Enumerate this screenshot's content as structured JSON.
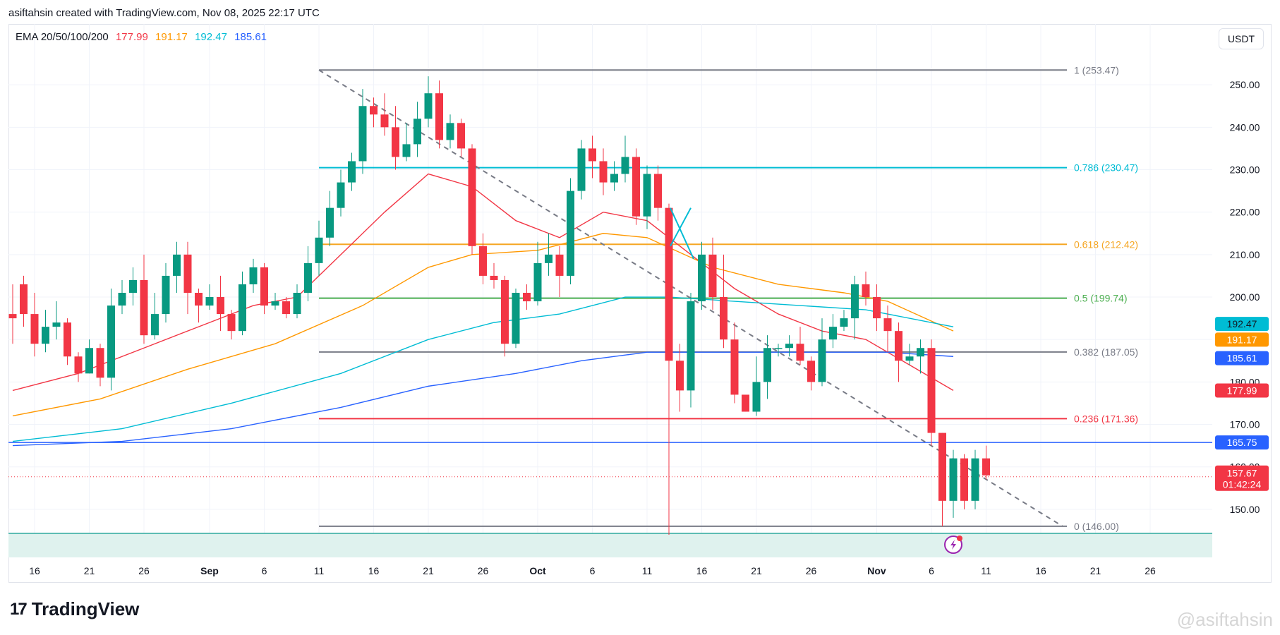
{
  "header": {
    "attribution": "asiftahsin created with TradingView.com, Nov 08, 2025 22:17 UTC"
  },
  "legend": {
    "label": "EMA 20/50/100/200",
    "values": [
      {
        "value": "177.99",
        "color": "#f23645"
      },
      {
        "value": "191.17",
        "color": "#ff9800"
      },
      {
        "value": "192.47",
        "color": "#00bcd4"
      },
      {
        "value": "185.61",
        "color": "#2962ff"
      }
    ]
  },
  "currency": "USDT",
  "brand": {
    "name": "TradingView",
    "mark": "17"
  },
  "watermark": "@asiftahsin",
  "chart_data": {
    "type": "candlestick",
    "title": "EMA 20/50/100/200",
    "ylim": [
      142,
      260
    ],
    "y_ticks": [
      150,
      160,
      170,
      180,
      190,
      200,
      210,
      220,
      230,
      240,
      250
    ],
    "x_labels": [
      {
        "i": 2,
        "label": "16"
      },
      {
        "i": 7,
        "label": "21"
      },
      {
        "i": 12,
        "label": "26"
      },
      {
        "i": 18,
        "label": "Sep"
      },
      {
        "i": 23,
        "label": "6"
      },
      {
        "i": 28,
        "label": "11"
      },
      {
        "i": 33,
        "label": "16"
      },
      {
        "i": 38,
        "label": "21"
      },
      {
        "i": 43,
        "label": "26"
      },
      {
        "i": 48,
        "label": "Oct"
      },
      {
        "i": 53,
        "label": "6"
      },
      {
        "i": 58,
        "label": "11"
      },
      {
        "i": 63,
        "label": "16"
      },
      {
        "i": 68,
        "label": "21"
      },
      {
        "i": 73,
        "label": "26"
      },
      {
        "i": 79,
        "label": "Nov"
      },
      {
        "i": 84,
        "label": "6"
      },
      {
        "i": 89,
        "label": "11"
      },
      {
        "i": 94,
        "label": "16"
      },
      {
        "i": 99,
        "label": "21"
      },
      {
        "i": 104,
        "label": "26"
      }
    ],
    "candles": [
      [
        196,
        195,
        203,
        189
      ],
      [
        203,
        196,
        205,
        193
      ],
      [
        196,
        189,
        201,
        186
      ],
      [
        189,
        193,
        197,
        187
      ],
      [
        193,
        194,
        199,
        190
      ],
      [
        194,
        186,
        195,
        184
      ],
      [
        186,
        182,
        187,
        180
      ],
      [
        182,
        188,
        190,
        182
      ],
      [
        188,
        181,
        189,
        179
      ],
      [
        181,
        198,
        202,
        178
      ],
      [
        198,
        201,
        204,
        196
      ],
      [
        201,
        204,
        207,
        198
      ],
      [
        204,
        191,
        210,
        189
      ],
      [
        191,
        196,
        201,
        190
      ],
      [
        196,
        205,
        208,
        194
      ],
      [
        205,
        210,
        213,
        201
      ],
      [
        210,
        201,
        213,
        196
      ],
      [
        201,
        198,
        202,
        194
      ],
      [
        198,
        200,
        203,
        197
      ],
      [
        200,
        196,
        205,
        192
      ],
      [
        196,
        192,
        197,
        190
      ],
      [
        192,
        203,
        206,
        191
      ],
      [
        203,
        207,
        209,
        201
      ],
      [
        207,
        198,
        208,
        196
      ],
      [
        198,
        199,
        201,
        197
      ],
      [
        199,
        196,
        200,
        195
      ],
      [
        196,
        201,
        203,
        195
      ],
      [
        201,
        208,
        212,
        199
      ],
      [
        208,
        214,
        218,
        205
      ],
      [
        214,
        221,
        225,
        212
      ],
      [
        221,
        227,
        230,
        219
      ],
      [
        227,
        232,
        234,
        225
      ],
      [
        232,
        245,
        249,
        229
      ],
      [
        245,
        243,
        247,
        240
      ],
      [
        243,
        240,
        248,
        238
      ],
      [
        240,
        233,
        245,
        230
      ],
      [
        233,
        236,
        241,
        232
      ],
      [
        236,
        242,
        246,
        233
      ],
      [
        242,
        248,
        252,
        240
      ],
      [
        248,
        237,
        251,
        235
      ],
      [
        237,
        241,
        243,
        235
      ],
      [
        241,
        235,
        242,
        233
      ],
      [
        235,
        212,
        236,
        210
      ],
      [
        212,
        205,
        215,
        203
      ],
      [
        205,
        204,
        208,
        202
      ],
      [
        204,
        189,
        205,
        186
      ],
      [
        189,
        201,
        202,
        188
      ],
      [
        201,
        199,
        203,
        197
      ],
      [
        199,
        208,
        213,
        198
      ],
      [
        208,
        210,
        215,
        205
      ],
      [
        210,
        205,
        212,
        200
      ],
      [
        205,
        225,
        228,
        203
      ],
      [
        225,
        235,
        237,
        223
      ],
      [
        235,
        232,
        238,
        228
      ],
      [
        232,
        227,
        235,
        224
      ],
      [
        227,
        229,
        232,
        225
      ],
      [
        229,
        233,
        238,
        227
      ],
      [
        233,
        219,
        235,
        217
      ],
      [
        219,
        229,
        231,
        216
      ],
      [
        229,
        221,
        231,
        218
      ],
      [
        221,
        185,
        222,
        144
      ],
      [
        185,
        178,
        189,
        173
      ],
      [
        178,
        199,
        201,
        174
      ],
      [
        199,
        210,
        213,
        197
      ],
      [
        210,
        200,
        214,
        197
      ],
      [
        200,
        190,
        210,
        188
      ],
      [
        190,
        177,
        194,
        175
      ],
      [
        177,
        173,
        176,
        173
      ],
      [
        173,
        180,
        186,
        172
      ],
      [
        180,
        188,
        191,
        176
      ],
      [
        188,
        188,
        189,
        186
      ],
      [
        188,
        189,
        191,
        186
      ],
      [
        189,
        185,
        193,
        184
      ],
      [
        185,
        180,
        186,
        178
      ],
      [
        180,
        190,
        195,
        179
      ],
      [
        190,
        193,
        196,
        188
      ],
      [
        193,
        195,
        197,
        192
      ],
      [
        195,
        203,
        205,
        190
      ],
      [
        203,
        200,
        206,
        198
      ],
      [
        200,
        195,
        203,
        192
      ],
      [
        195,
        192,
        198,
        187
      ],
      [
        192,
        185,
        194,
        180
      ],
      [
        185,
        186,
        189,
        184
      ],
      [
        186,
        188,
        190,
        182
      ],
      [
        188,
        168,
        190,
        165
      ],
      [
        168,
        152,
        168,
        146
      ],
      [
        152,
        162,
        164,
        148
      ],
      [
        162,
        152,
        163,
        150
      ],
      [
        152,
        162,
        164,
        150
      ],
      [
        162,
        158,
        165,
        157
      ]
    ],
    "ema_series": [
      {
        "name": "EMA 20",
        "color": "#f23645",
        "start": 0,
        "values": [
          {
            "i": 0,
            "v": 178
          },
          {
            "i": 6,
            "v": 182
          },
          {
            "i": 12,
            "v": 188
          },
          {
            "i": 18,
            "v": 194
          },
          {
            "i": 22,
            "v": 198
          },
          {
            "i": 26,
            "v": 200
          },
          {
            "i": 30,
            "v": 210
          },
          {
            "i": 34,
            "v": 220
          },
          {
            "i": 38,
            "v": 229
          },
          {
            "i": 42,
            "v": 226
          },
          {
            "i": 46,
            "v": 218
          },
          {
            "i": 50,
            "v": 214
          },
          {
            "i": 54,
            "v": 220
          },
          {
            "i": 58,
            "v": 218
          },
          {
            "i": 62,
            "v": 210
          },
          {
            "i": 66,
            "v": 202
          },
          {
            "i": 70,
            "v": 196
          },
          {
            "i": 74,
            "v": 192
          },
          {
            "i": 78,
            "v": 190
          },
          {
            "i": 82,
            "v": 184
          },
          {
            "i": 86,
            "v": 178
          }
        ]
      },
      {
        "name": "EMA 50",
        "color": "#ff9800",
        "start": 0,
        "values": [
          {
            "i": 0,
            "v": 172
          },
          {
            "i": 8,
            "v": 176
          },
          {
            "i": 16,
            "v": 183
          },
          {
            "i": 24,
            "v": 189
          },
          {
            "i": 32,
            "v": 198
          },
          {
            "i": 38,
            "v": 207
          },
          {
            "i": 42,
            "v": 210
          },
          {
            "i": 48,
            "v": 211
          },
          {
            "i": 54,
            "v": 215
          },
          {
            "i": 58,
            "v": 214
          },
          {
            "i": 64,
            "v": 207
          },
          {
            "i": 70,
            "v": 203
          },
          {
            "i": 76,
            "v": 201
          },
          {
            "i": 80,
            "v": 199
          },
          {
            "i": 86,
            "v": 192
          }
        ]
      },
      {
        "name": "EMA 100",
        "color": "#00bcd4",
        "start": 0,
        "values": [
          {
            "i": 0,
            "v": 166
          },
          {
            "i": 10,
            "v": 169
          },
          {
            "i": 20,
            "v": 175
          },
          {
            "i": 30,
            "v": 182
          },
          {
            "i": 38,
            "v": 190
          },
          {
            "i": 44,
            "v": 194
          },
          {
            "i": 50,
            "v": 196
          },
          {
            "i": 56,
            "v": 200
          },
          {
            "i": 60,
            "v": 200
          },
          {
            "i": 66,
            "v": 199
          },
          {
            "i": 72,
            "v": 198
          },
          {
            "i": 78,
            "v": 197
          },
          {
            "i": 86,
            "v": 193
          }
        ]
      },
      {
        "name": "EMA 200",
        "color": "#2962ff",
        "start": 0,
        "values": [
          {
            "i": 0,
            "v": 165
          },
          {
            "i": 10,
            "v": 166
          },
          {
            "i": 20,
            "v": 169
          },
          {
            "i": 30,
            "v": 174
          },
          {
            "i": 38,
            "v": 179
          },
          {
            "i": 46,
            "v": 182
          },
          {
            "i": 52,
            "v": 185
          },
          {
            "i": 58,
            "v": 187
          },
          {
            "i": 66,
            "v": 187
          },
          {
            "i": 74,
            "v": 187
          },
          {
            "i": 80,
            "v": 187
          },
          {
            "i": 86,
            "v": 186
          }
        ]
      }
    ],
    "fib_levels": [
      {
        "ratio": "1",
        "price": 253.47,
        "label": "1 (253.47)",
        "color": "#787b86"
      },
      {
        "ratio": "0.786",
        "price": 230.47,
        "label": "0.786 (230.47)",
        "color": "#00bcd4"
      },
      {
        "ratio": "0.618",
        "price": 212.42,
        "label": "0.618 (212.42)",
        "color": "#f5a623"
      },
      {
        "ratio": "0.5",
        "price": 199.74,
        "label": "0.5 (199.74)",
        "color": "#4caf50"
      },
      {
        "ratio": "0.382",
        "price": 187.05,
        "label": "0.382 (187.05)",
        "color": "#787b86"
      },
      {
        "ratio": "0.236",
        "price": 171.36,
        "label": "0.236 (171.36)",
        "color": "#f23645"
      },
      {
        "ratio": "0",
        "price": 146.0,
        "label": "0 (146.00)",
        "color": "#787b86"
      }
    ],
    "support_line": {
      "price": 165.75,
      "label": "165.75",
      "color": "#2962ff"
    },
    "current_price": {
      "price": 157.67,
      "label": "157.67",
      "countdown": "01:42:24",
      "color": "#f23645"
    },
    "price_badges": [
      {
        "price": 192.47,
        "label": "192.47",
        "color": "#00bcd4",
        "text_color": "#131722"
      },
      {
        "price": 191.17,
        "label": "191.17",
        "color": "#ff9800",
        "text_color": "#ffffff"
      },
      {
        "price": 185.61,
        "label": "185.61",
        "color": "#2962ff",
        "text_color": "#ffffff"
      },
      {
        "price": 177.99,
        "label": "177.99",
        "color": "#f23645",
        "text_color": "#ffffff"
      }
    ],
    "trendline": {
      "from": {
        "i": 28,
        "price": 253.47
      },
      "to": {
        "i": 96,
        "price": 146.0
      }
    }
  }
}
